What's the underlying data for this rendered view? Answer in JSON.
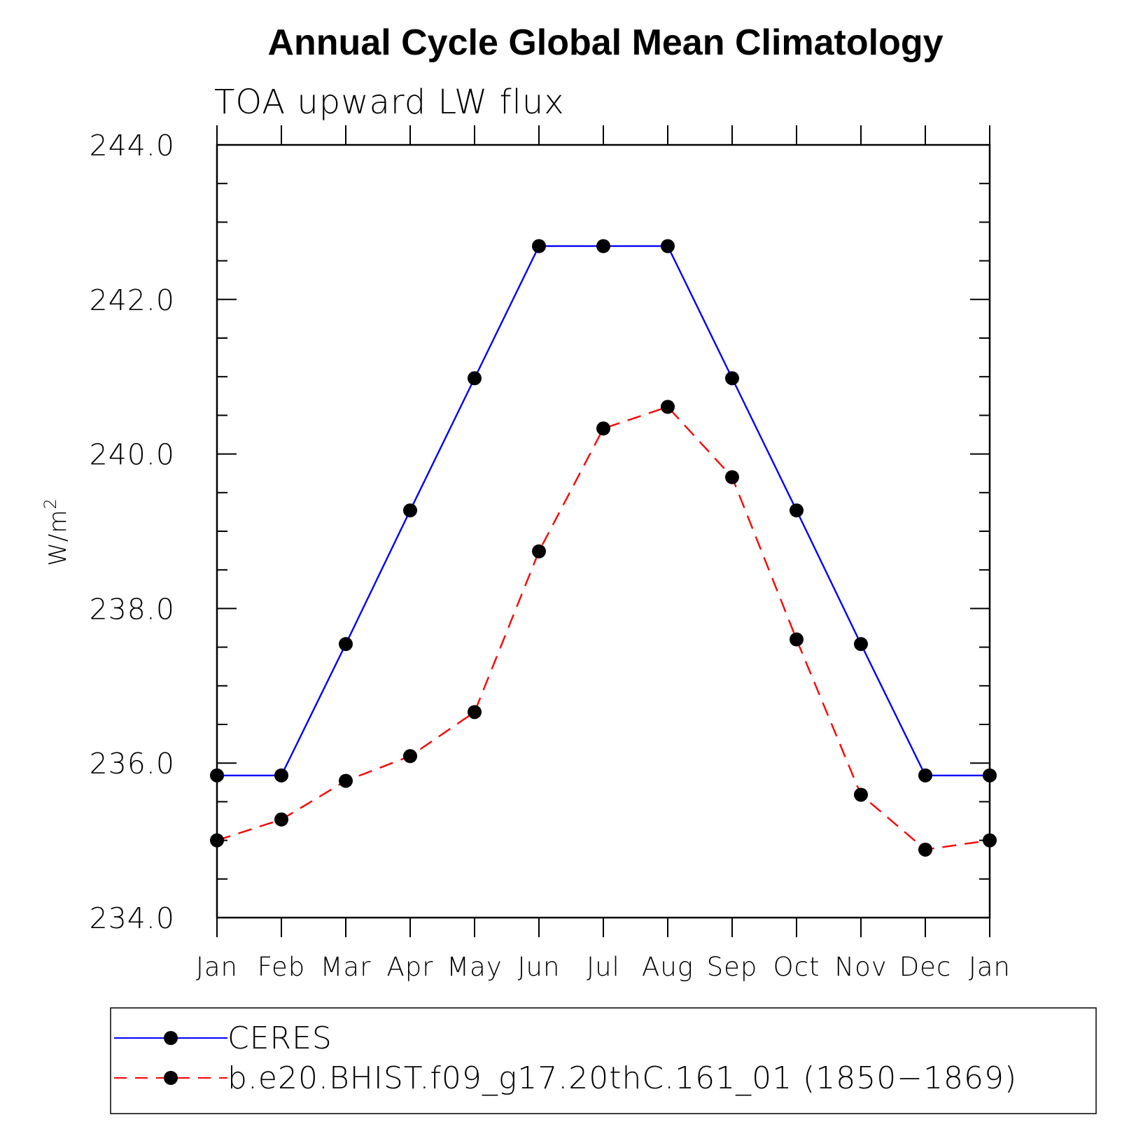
{
  "chart_data": {
    "type": "line",
    "title": "Annual Cycle Global Mean Climatology",
    "subtitle": "TOA upward LW flux",
    "ylabel": "W/m",
    "ylabel_sup": "2",
    "ylim": [
      234.0,
      244.0
    ],
    "yticks": [
      "244.0",
      "242.0",
      "240.0",
      "238.0",
      "236.0",
      "234.0"
    ],
    "ytick_values": [
      244.0,
      242.0,
      240.0,
      238.0,
      236.0,
      234.0
    ],
    "categories": [
      "Jan",
      "Feb",
      "Mar",
      "Apr",
      "May",
      "Jun",
      "Jul",
      "Aug",
      "Sep",
      "Oct",
      "Nov",
      "Dec",
      "Jan"
    ],
    "grid": false,
    "legend_position": "bottom",
    "series": [
      {
        "name": "CERES",
        "color": "#0000ff",
        "style": "solid",
        "marker": "filled-circle",
        "values": [
          235.84,
          235.84,
          237.54,
          239.27,
          240.98,
          242.69,
          242.69,
          242.69,
          240.98,
          239.27,
          237.54,
          235.84,
          235.84
        ]
      },
      {
        "name": "b.e20.BHIST.f09_g17.20thC.161_01 (1850−1869)",
        "color": "#ff0000",
        "style": "dashed",
        "marker": "filled-circle",
        "values": [
          235.0,
          235.27,
          235.77,
          236.09,
          236.66,
          238.74,
          240.33,
          240.61,
          239.7,
          237.6,
          235.59,
          234.88,
          235.0
        ]
      }
    ]
  }
}
